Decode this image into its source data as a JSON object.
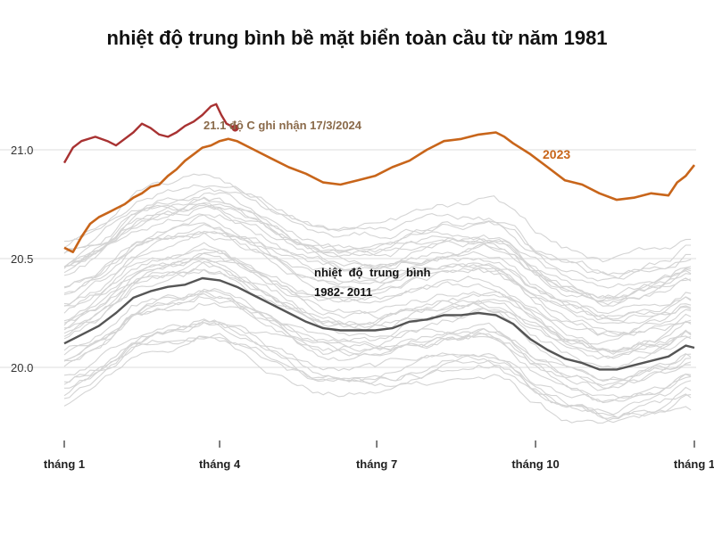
{
  "title": "nhiệt độ trung bình bề mặt biển toàn cầu từ năm 1981",
  "colors": {
    "background_years": "#d4d4d4",
    "average": "#555555",
    "year_2023": "#c8651a",
    "year_2024": "#a83232",
    "gridline": "#dcdcdc"
  },
  "chart_data": {
    "type": "line",
    "title": "nhiệt độ trung bình bề mặt biển toàn cầu từ năm 1981",
    "xlabel": "",
    "ylabel": "",
    "grid": "horizontal",
    "x_ticks": [
      "tháng 1",
      "tháng 4",
      "tháng 7",
      "tháng 10",
      "tháng 1"
    ],
    "x_tick_days": [
      0,
      90,
      181,
      273,
      365
    ],
    "y_ticks": [
      "20.0",
      "20.5",
      "21.0"
    ],
    "y_tick_values": [
      20.0,
      20.5,
      21.0
    ],
    "ylim": [
      19.65,
      21.3
    ],
    "xlim": [
      0,
      365
    ],
    "annotations": {
      "record": "21.1 độ C ghi nhận 17/3/2024",
      "year_2023": "2023",
      "average_line1": "nhiệt độ trung bình",
      "average_line2": "1982- 2011"
    },
    "series": [
      {
        "name": "2024",
        "x": [
          0,
          5,
          10,
          18,
          25,
          30,
          35,
          40,
          45,
          50,
          55,
          60,
          65,
          70,
          75,
          80,
          85,
          88,
          91,
          94,
          99
        ],
        "y": [
          20.94,
          21.01,
          21.04,
          21.06,
          21.04,
          21.02,
          21.05,
          21.08,
          21.12,
          21.1,
          21.07,
          21.06,
          21.08,
          21.11,
          21.13,
          21.16,
          21.2,
          21.21,
          21.16,
          21.12,
          21.1
        ],
        "color": "#a83232",
        "width": 2.4
      },
      {
        "name": "2023",
        "x": [
          0,
          5,
          10,
          15,
          20,
          25,
          30,
          35,
          40,
          45,
          50,
          55,
          60,
          65,
          70,
          75,
          80,
          85,
          90,
          95,
          100,
          110,
          120,
          130,
          140,
          150,
          160,
          170,
          180,
          190,
          200,
          210,
          220,
          230,
          240,
          250,
          255,
          260,
          270,
          280,
          290,
          300,
          310,
          320,
          330,
          340,
          350,
          355,
          360,
          365
        ],
        "y": [
          20.55,
          20.53,
          20.6,
          20.66,
          20.69,
          20.71,
          20.73,
          20.75,
          20.78,
          20.8,
          20.83,
          20.84,
          20.88,
          20.91,
          20.95,
          20.98,
          21.01,
          21.02,
          21.04,
          21.05,
          21.04,
          21.0,
          20.96,
          20.92,
          20.89,
          20.85,
          20.84,
          20.86,
          20.88,
          20.92,
          20.95,
          21.0,
          21.04,
          21.05,
          21.07,
          21.08,
          21.06,
          21.03,
          20.98,
          20.92,
          20.86,
          20.84,
          20.8,
          20.77,
          20.78,
          20.8,
          20.79,
          20.85,
          20.88,
          20.93
        ],
        "color": "#c8651a",
        "width": 2.6
      },
      {
        "name": "1982- 2011",
        "x": [
          0,
          10,
          20,
          30,
          40,
          50,
          60,
          70,
          80,
          90,
          100,
          110,
          120,
          130,
          140,
          150,
          160,
          170,
          180,
          190,
          200,
          210,
          220,
          230,
          240,
          250,
          260,
          270,
          280,
          290,
          300,
          310,
          320,
          330,
          340,
          350,
          360,
          365
        ],
        "y": [
          20.11,
          20.15,
          20.19,
          20.25,
          20.32,
          20.35,
          20.37,
          20.38,
          20.41,
          20.4,
          20.37,
          20.33,
          20.29,
          20.25,
          20.21,
          20.18,
          20.17,
          20.17,
          20.17,
          20.18,
          20.21,
          20.22,
          20.24,
          20.24,
          20.25,
          20.24,
          20.2,
          20.13,
          20.08,
          20.04,
          20.02,
          19.99,
          19.99,
          20.01,
          20.03,
          20.05,
          20.1,
          20.09
        ],
        "color": "#555555",
        "width": 2.4
      }
    ],
    "background_series_count": 40
  }
}
